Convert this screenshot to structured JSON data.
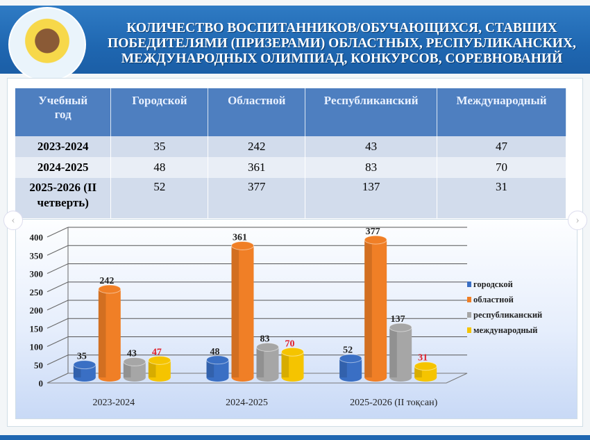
{
  "header": {
    "title_lines": [
      "КОЛИЧЕСТВО ВОСПИТАННИКОВ/ОБУЧАЮЩИХСЯ, СТАВШИХ",
      "ПОБЕДИТЕЛЯМИ (ПРИЗЕРАМИ) ОБЛАСТНЫХ, РЕСПУБЛИКАНСКИХ,",
      "МЕЖДУНАРОДНЫХ ОЛИМПИАД, КОНКУРСОВ, СОРЕВНОВАНИЙ"
    ]
  },
  "table": {
    "headers": [
      "Учебный год",
      "Городской",
      "Областной",
      "Республиканский",
      "Международный"
    ],
    "rows": [
      {
        "year": "2023-2024",
        "values": [
          "35",
          "242",
          "43",
          "47"
        ]
      },
      {
        "year": "2024-2025",
        "values": [
          "48",
          "361",
          "83",
          "70"
        ]
      },
      {
        "year": "2025-2026 (II четверть)",
        "values": [
          "52",
          "377",
          "137",
          "31"
        ]
      }
    ]
  },
  "chart_data": {
    "type": "bar",
    "style": "3d-cylinder",
    "categories": [
      "2023-2024",
      "2024-2025",
      "2025-2026 (II тоқсан)"
    ],
    "series": [
      {
        "name": "городской",
        "color": "#3a6fc4",
        "label_color": "#222222",
        "values": [
          35,
          48,
          52
        ]
      },
      {
        "name": "областной",
        "color": "#f07f26",
        "label_color": "#222222",
        "values": [
          242,
          361,
          377
        ]
      },
      {
        "name": "республиканский",
        "color": "#a6a6a6",
        "label_color": "#222222",
        "values": [
          43,
          83,
          137
        ]
      },
      {
        "name": "международный",
        "color": "#f5c400",
        "label_color": "#e0202a",
        "values": [
          47,
          70,
          31
        ]
      }
    ],
    "yticks": [
      "0",
      "50",
      "100",
      "150",
      "200",
      "250",
      "300",
      "350",
      "400"
    ],
    "ylim": [
      0,
      400
    ],
    "grid": true,
    "legend": "right"
  },
  "nav": {
    "prev": "‹",
    "next": "›"
  }
}
